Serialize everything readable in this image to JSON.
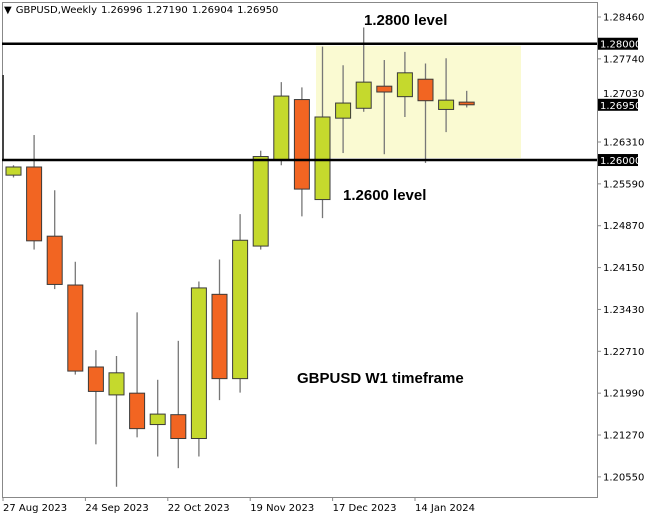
{
  "header": {
    "symbol_timeframe": "GBPUSD,Weekly",
    "open": "1.26996",
    "high": "1.27190",
    "low": "1.26904",
    "close": "1.26950",
    "menu_icon": "triangle-down-icon"
  },
  "annotations": {
    "upper_level": "1.2800 level",
    "lower_level": "1.2600 level",
    "timeframe_note": "GBPUSD W1 timeframe"
  },
  "chart_data": {
    "type": "candlestick",
    "title": "GBPUSD,Weekly",
    "ylim": [
      1.2009,
      1.2883
    ],
    "y_ticks": [
      "1.28460",
      "1.27740",
      "1.27030",
      "1.26310",
      "1.25590",
      "1.24870",
      "1.24150",
      "1.23430",
      "1.22710",
      "1.21990",
      "1.21270",
      "1.20550"
    ],
    "x_ticks": [
      "27 Aug 2023",
      "24 Sep 2023",
      "22 Oct 2023",
      "19 Nov 2023",
      "17 Dec 2023",
      "14 Jan 2024"
    ],
    "x_tick_candle_index": [
      0,
      4,
      8,
      12,
      16,
      20
    ],
    "horizontal_lines": [
      {
        "price": 1.28,
        "label": "1.28000"
      },
      {
        "price": 1.26,
        "label": "1.26000"
      }
    ],
    "current_price_label": "1.26950",
    "current_price": 1.2695,
    "range_zone": {
      "low": 1.26,
      "high": 1.28,
      "from_index": 15,
      "color": "#FAFAD2"
    },
    "colors": {
      "bull": "#C5D92D",
      "bear": "#F26522",
      "border": "#3a3a3a",
      "wick": "#777777"
    },
    "candles": [
      {
        "o": 1.2574,
        "h": 1.2591,
        "l": 1.257,
        "c": 1.2588
      },
      {
        "o": 1.2588,
        "h": 1.2643,
        "l": 1.2446,
        "c": 1.2461
      },
      {
        "o": 1.2469,
        "h": 1.2548,
        "l": 1.2378,
        "c": 1.2386
      },
      {
        "o": 1.2385,
        "h": 1.2425,
        "l": 1.2231,
        "c": 1.2237
      },
      {
        "o": 1.2244,
        "h": 1.2273,
        "l": 1.2111,
        "c": 1.2202
      },
      {
        "o": 1.2196,
        "h": 1.2263,
        "l": 1.2038,
        "c": 1.2234
      },
      {
        "o": 1.2199,
        "h": 1.2338,
        "l": 1.2123,
        "c": 1.2138
      },
      {
        "o": 1.2145,
        "h": 1.2222,
        "l": 1.209,
        "c": 1.2163
      },
      {
        "o": 1.2162,
        "h": 1.2289,
        "l": 1.207,
        "c": 1.2121
      },
      {
        "o": 1.2121,
        "h": 1.2391,
        "l": 1.209,
        "c": 1.238
      },
      {
        "o": 1.2369,
        "h": 1.2429,
        "l": 1.2187,
        "c": 1.2224
      },
      {
        "o": 1.2224,
        "h": 1.2507,
        "l": 1.22,
        "c": 1.2462
      },
      {
        "o": 1.2452,
        "h": 1.2616,
        "l": 1.2446,
        "c": 1.2606
      },
      {
        "o": 1.26,
        "h": 1.2734,
        "l": 1.2591,
        "c": 1.271
      },
      {
        "o": 1.2704,
        "h": 1.2725,
        "l": 1.2503,
        "c": 1.255
      },
      {
        "o": 1.2532,
        "h": 1.2795,
        "l": 1.25,
        "c": 1.2674
      },
      {
        "o": 1.2672,
        "h": 1.2763,
        "l": 1.2612,
        "c": 1.2698
      },
      {
        "o": 1.2689,
        "h": 1.2828,
        "l": 1.2683,
        "c": 1.2734
      },
      {
        "o": 1.2727,
        "h": 1.2772,
        "l": 1.261,
        "c": 1.2717
      },
      {
        "o": 1.2709,
        "h": 1.2786,
        "l": 1.2674,
        "c": 1.275
      },
      {
        "o": 1.2739,
        "h": 1.2766,
        "l": 1.2595,
        "c": 1.2702
      },
      {
        "o": 1.2687,
        "h": 1.2775,
        "l": 1.2648,
        "c": 1.2703
      },
      {
        "o": 1.26996,
        "h": 1.2719,
        "l": 1.26904,
        "c": 1.2695
      }
    ]
  }
}
